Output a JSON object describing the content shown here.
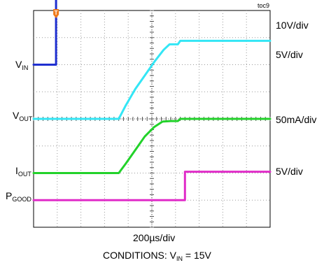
{
  "figure_tag": "toc9",
  "chart_data": {
    "type": "line",
    "title": "",
    "xlabel": "200µs/div",
    "grid": true,
    "divisions": {
      "x": 10,
      "y": 8
    },
    "x_unit": "div",
    "y_unit": "div",
    "trigger_marker": "T",
    "series": [
      {
        "name": "VIN",
        "label_main": "V",
        "label_sub": "IN",
        "scale": "10V/div",
        "color": "#1f2fd0",
        "points": [
          [
            0,
            6.0
          ],
          [
            0.95,
            6.0
          ],
          [
            0.95,
            8.45
          ],
          [
            10,
            8.45
          ]
        ]
      },
      {
        "name": "VOUT",
        "label_main": "V",
        "label_sub": "OUT",
        "scale": "5V/div",
        "color": "#33e6f5",
        "points": [
          [
            0,
            4.0
          ],
          [
            3.6,
            4.0
          ],
          [
            3.9,
            4.5
          ],
          [
            4.3,
            5.1
          ],
          [
            4.7,
            5.6
          ],
          [
            5.1,
            6.1
          ],
          [
            5.5,
            6.55
          ],
          [
            5.75,
            6.75
          ],
          [
            6.1,
            6.75
          ],
          [
            6.2,
            6.88
          ],
          [
            10,
            6.88
          ]
        ]
      },
      {
        "name": "IOUT",
        "label_main": "I",
        "label_sub": "OUT",
        "scale": "50mA/div",
        "color": "#22d22a",
        "points": [
          [
            0,
            2.0
          ],
          [
            3.6,
            2.0
          ],
          [
            3.9,
            2.35
          ],
          [
            4.3,
            2.85
          ],
          [
            4.7,
            3.35
          ],
          [
            5.1,
            3.7
          ],
          [
            5.45,
            3.9
          ],
          [
            5.8,
            3.92
          ],
          [
            6.1,
            3.92
          ],
          [
            6.2,
            4.0
          ],
          [
            10,
            4.0
          ]
        ]
      },
      {
        "name": "PGOOD",
        "label_main": "P",
        "label_sub": "GOOD",
        "scale": "5V/div",
        "color": "#e02cc8",
        "points": [
          [
            0,
            1.0
          ],
          [
            6.4,
            1.0
          ],
          [
            6.4,
            2.05
          ],
          [
            10,
            2.05
          ]
        ]
      }
    ]
  },
  "conditions": {
    "prefix": "CONDITIONS: V",
    "sub": "IN",
    "suffix": " = 15V"
  }
}
